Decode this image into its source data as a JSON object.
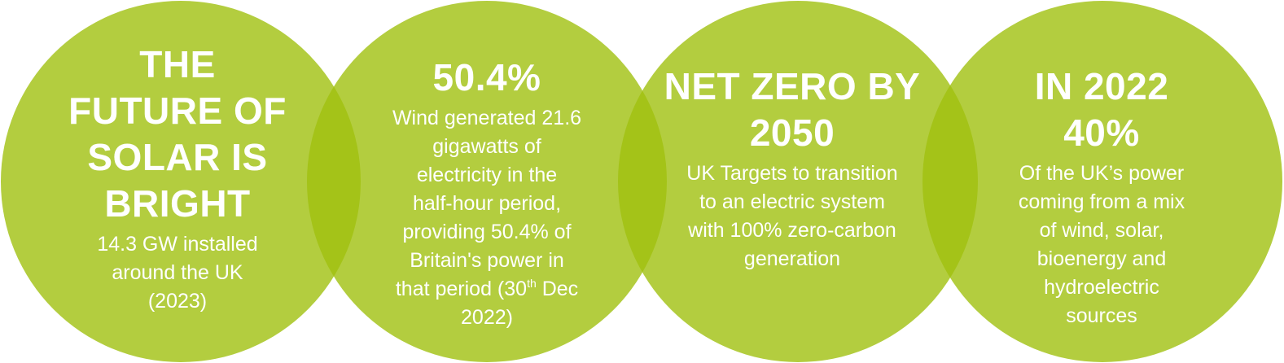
{
  "colors": {
    "circle_fill": "#b3cf3b",
    "overlap_fill": "#a3c221",
    "text": "#ffffff"
  },
  "circles": [
    {
      "title_lines": [
        "THE",
        "FUTURE OF",
        "SOLAR IS",
        "BRIGHT"
      ],
      "body_lines": [
        "14.3 GW installed",
        "around the UK",
        "(2023)"
      ]
    },
    {
      "title_lines": [
        "50.4%"
      ],
      "body_lines": [
        "Wind generated 21.6",
        "gigawatts of",
        "electricity in the",
        "half-hour period,",
        "providing 50.4% of",
        "Britain's power in"
      ],
      "body_last": {
        "before": "that period (30",
        "sup": "th",
        "after": " Dec",
        "final": "2022)"
      }
    },
    {
      "title_lines": [
        "NET ZERO BY",
        "2050"
      ],
      "body_lines": [
        "UK Targets to transition",
        "to an electric system",
        "with 100% zero-carbon",
        "generation"
      ]
    },
    {
      "title_lines": [
        "IN 2022",
        "40%"
      ],
      "body_lines": [
        "Of the UK’s power",
        "coming from a mix",
        "of wind, solar,",
        "bioenergy and",
        "hydroelectric",
        "sources"
      ]
    }
  ]
}
